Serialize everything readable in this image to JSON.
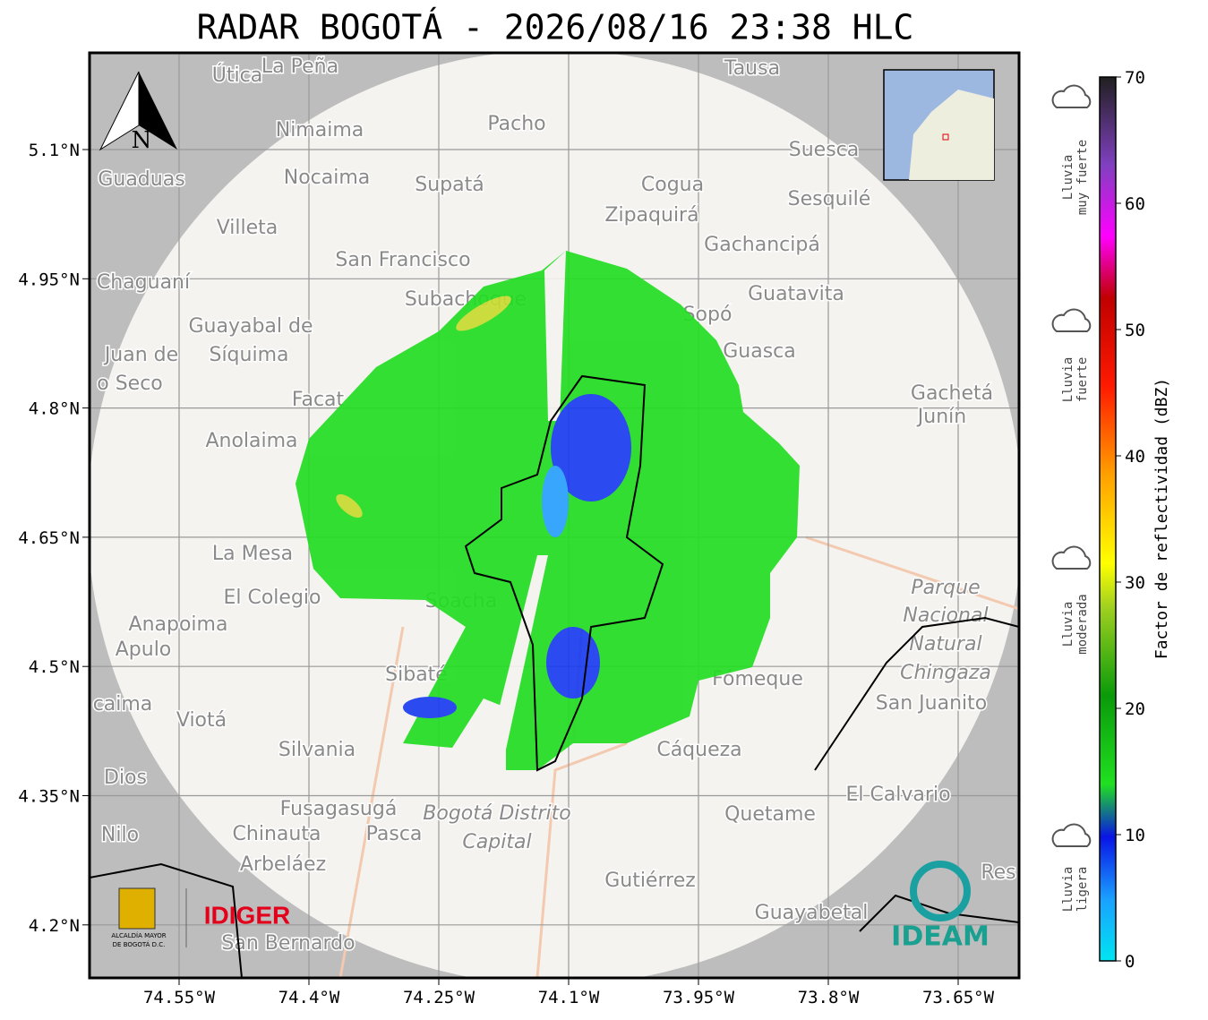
{
  "header": {
    "title": "RADAR BOGOTÁ - 2026/08/16 23:38 HLC"
  },
  "map": {
    "north_label": "N",
    "lon_ticks": [
      {
        "value": 74.55,
        "label": "74.55°W"
      },
      {
        "value": 74.4,
        "label": "74.4°W"
      },
      {
        "value": 74.25,
        "label": "74.25°W"
      },
      {
        "value": 74.1,
        "label": "74.1°W"
      },
      {
        "value": 73.95,
        "label": "73.95°W"
      },
      {
        "value": 73.8,
        "label": "73.8°W"
      },
      {
        "value": 73.65,
        "label": "73.65°W"
      }
    ],
    "lat_ticks": [
      {
        "value": 5.1,
        "label": "5.1°N"
      },
      {
        "value": 4.95,
        "label": "4.95°N"
      },
      {
        "value": 4.8,
        "label": "4.8°N"
      },
      {
        "value": 4.65,
        "label": "4.65°N"
      },
      {
        "value": 4.5,
        "label": "4.5°N"
      },
      {
        "value": 4.35,
        "label": "4.35°N"
      },
      {
        "value": 4.2,
        "label": "4.2°N"
      }
    ],
    "places": [
      "Útica",
      "La Peña",
      "Tausa",
      "Pacho",
      "Nimaima",
      "Suesca",
      "Guaduas",
      "Nocaima",
      "Supatá",
      "Cogua",
      "Sesquilé",
      "Zipaquirá",
      "Villeta",
      "Gachancipá",
      "San Francisco",
      "Chaguaní",
      "Guatavita",
      "Guayabal de",
      "Síquima",
      "Sopó",
      "Guasca",
      "Juan de",
      "o Seco",
      "Gachetá",
      "Junín",
      "Anolaima",
      "Facat",
      "La Mesa",
      "El Colegio",
      "Soacha",
      "Anapoima",
      "Apulo",
      "Parque",
      "Nacional",
      "Natural",
      "Chingaza",
      "Sibaté",
      "Fómeque",
      "San Juanito",
      "caima",
      "Viotá",
      "Silvania",
      "Cáqueza",
      "Dios",
      "El Calvario",
      "Fusagasugá",
      "Quetame",
      "Bogotá Distrito",
      "Capital",
      "Nilo",
      "Chinauta",
      "Pasca",
      "Arbeláez",
      "Gutiérrez",
      "Guayabetal",
      "San Bernardo",
      "Res",
      "Subachoque"
    ]
  },
  "colorbar": {
    "label": "Factor de reflectividad (dBZ)",
    "ticks": [
      0,
      10,
      20,
      30,
      40,
      50,
      60,
      70
    ],
    "levels": [
      {
        "lines": [
          "Lluvia",
          "muy fuerte"
        ]
      },
      {
        "lines": [
          "Lluvia",
          "fuerte"
        ]
      },
      {
        "lines": [
          "Lluvia",
          "moderada"
        ]
      },
      {
        "lines": [
          "Lluvia",
          "ligera"
        ]
      }
    ]
  },
  "logos": {
    "idiger": "IDIGER",
    "alcaldia": [
      "ALCALDÍA MAYOR",
      "DE BOGOTÁ D.C."
    ],
    "ideam": "IDEAM"
  }
}
